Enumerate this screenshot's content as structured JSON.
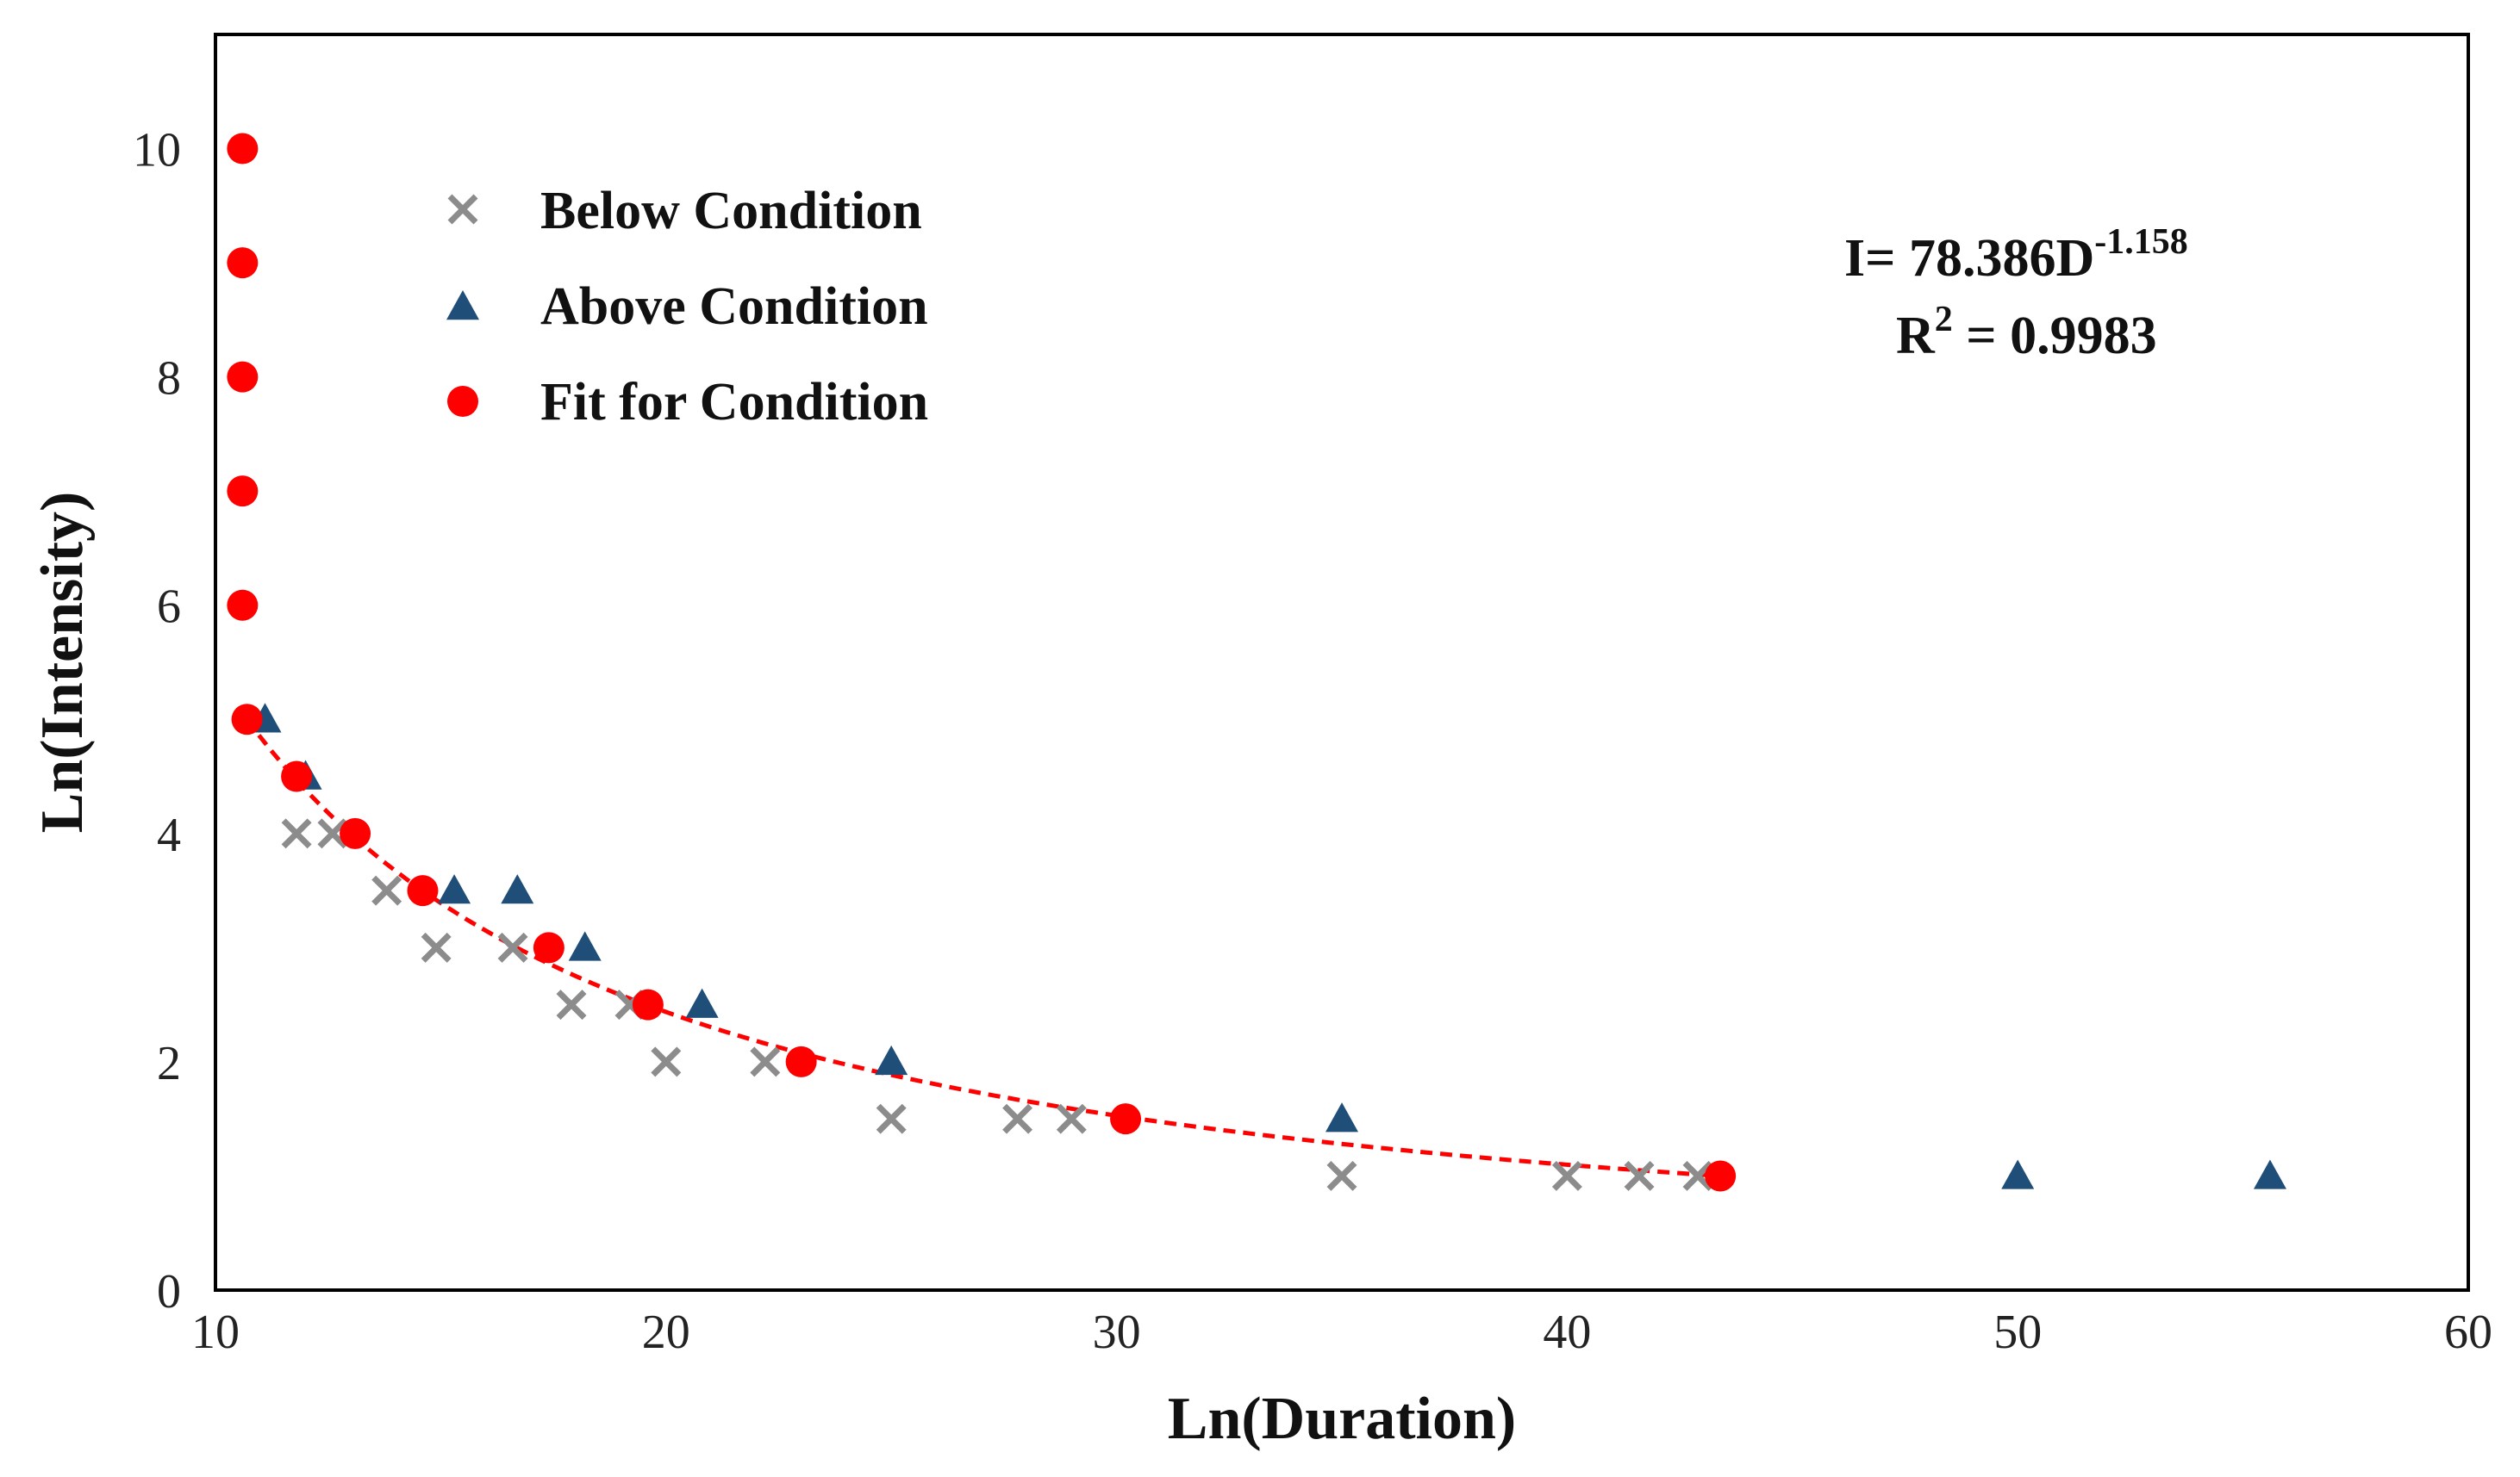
{
  "chart_data": {
    "type": "scatter",
    "title": "",
    "xlabel": "Ln(Duration)",
    "ylabel": "Ln(Intensity)",
    "xlim": [
      10,
      60
    ],
    "ylim": [
      0,
      11
    ],
    "xticks": [
      10,
      20,
      30,
      40,
      50,
      60
    ],
    "yticks": [
      0,
      2,
      4,
      6,
      8,
      10
    ],
    "grid": false,
    "legend_position": "top-left",
    "colors": {
      "below": "#8c8c8c",
      "above": "#1f4e79",
      "fit": "#ff0000",
      "trend": "#ff0000"
    },
    "series": [
      {
        "name": "Below Condition",
        "marker": "x",
        "x": [
          11.8,
          12.6,
          13.8,
          14.9,
          16.6,
          17.9,
          19.2,
          20.0,
          22.2,
          25.0,
          27.8,
          29.0,
          35.0,
          40.0,
          41.6,
          42.9
        ],
        "y": [
          4.0,
          4.0,
          3.5,
          3.0,
          3.0,
          2.5,
          2.5,
          2.0,
          2.0,
          1.5,
          1.5,
          1.5,
          1.0,
          1.0,
          1.0,
          1.0
        ]
      },
      {
        "name": "Above Condition",
        "marker": "triangle",
        "x": [
          11.1,
          12.0,
          15.3,
          16.7,
          18.2,
          20.8,
          25.0,
          35.0,
          50.0,
          55.6
        ],
        "y": [
          5.0,
          4.5,
          3.5,
          3.5,
          3.0,
          2.5,
          2.0,
          1.5,
          1.0,
          1.0
        ]
      },
      {
        "name": "Fit for Condition",
        "marker": "circle",
        "x": [
          10.6,
          10.6,
          10.6,
          10.6,
          10.6,
          10.7,
          11.8,
          13.1,
          14.6,
          17.4,
          19.6,
          23.0,
          30.2,
          43.4
        ],
        "y": [
          10.0,
          9.0,
          8.0,
          7.0,
          6.0,
          5.0,
          4.5,
          4.0,
          3.5,
          3.0,
          2.5,
          2.0,
          1.5,
          1.0
        ]
      }
    ],
    "trendline": {
      "type": "power",
      "a": 78.386,
      "b": -1.158,
      "x_range": [
        10.7,
        43.4
      ]
    },
    "annotation": {
      "equation_prefix": "I= 78.386D",
      "equation_exponent": "-1.158",
      "r2_prefix": "R",
      "r2_exponent": "2",
      "r2_value": " = 0.9983"
    }
  }
}
